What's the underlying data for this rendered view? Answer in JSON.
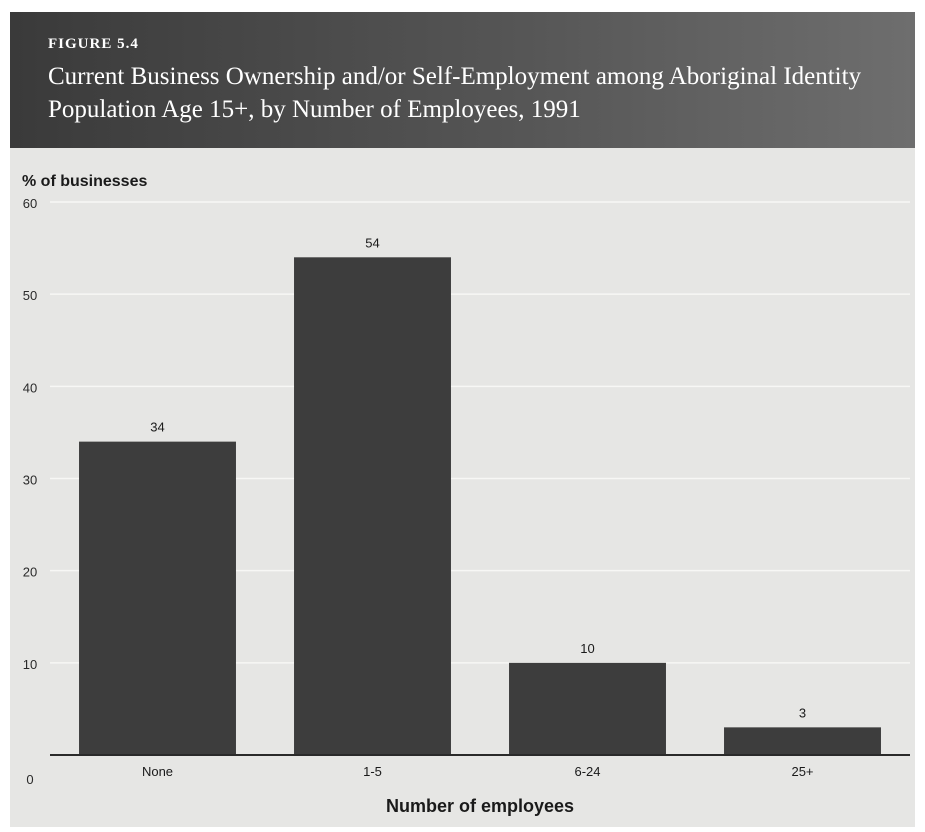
{
  "figure": {
    "label": "FIGURE 5.4",
    "title": "Current Business Ownership and/or Self-Employment among Aboriginal Identity Population Age 15+, by Number of Employees, 1991"
  },
  "chart_data": {
    "type": "bar",
    "categories": [
      "None",
      "1-5",
      "6-24",
      "25+"
    ],
    "values": [
      34,
      54,
      10,
      3
    ],
    "data_labels": [
      "34",
      "54",
      "10",
      "3"
    ],
    "ylabel": "% of businesses",
    "xlabel": "Number of employees",
    "ylim": [
      0,
      60
    ],
    "yticks": [
      0,
      10,
      20,
      30,
      40,
      50,
      60
    ],
    "grid": true,
    "bar_color": "#3d3d3d",
    "plot_background": "#e6e6e4",
    "grid_color": "#f7f7f5"
  }
}
